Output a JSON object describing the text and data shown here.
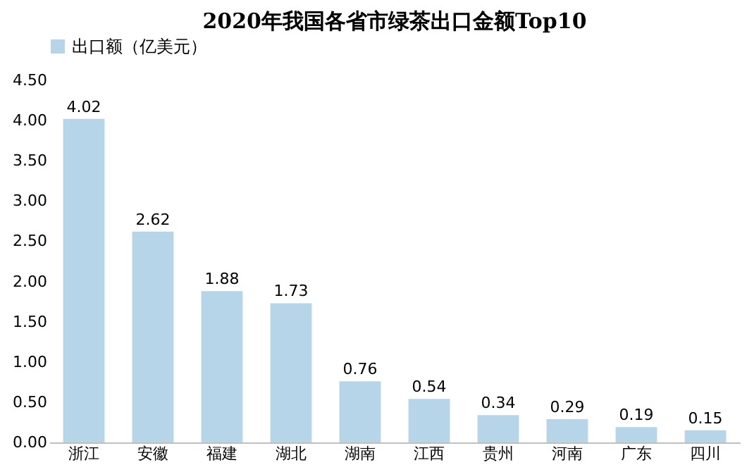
{
  "chart_data": {
    "type": "bar",
    "title": "2020年我国各省市绿茶出口金额Top10",
    "categories": [
      "浙江",
      "安徽",
      "福建",
      "湖北",
      "湖南",
      "江西",
      "贵州",
      "河南",
      "广东",
      "四川"
    ],
    "series": [
      {
        "name": "出口额（亿美元）",
        "color": "#b7d5e8",
        "values": [
          4.02,
          2.62,
          1.88,
          1.73,
          0.76,
          0.54,
          0.34,
          0.29,
          0.19,
          0.15
        ]
      }
    ],
    "ylim": [
      0,
      4.5
    ],
    "yticks": [
      {
        "value": 0,
        "label": "0.00"
      },
      {
        "value": 0.5,
        "label": "0.50"
      },
      {
        "value": 1,
        "label": "1.00"
      },
      {
        "value": 1.5,
        "label": "1.50"
      },
      {
        "value": 2,
        "label": "2.00"
      },
      {
        "value": 2.5,
        "label": "2.50"
      },
      {
        "value": 3,
        "label": "3.00"
      },
      {
        "value": 3.5,
        "label": "3.50"
      },
      {
        "value": 4,
        "label": "4.00"
      },
      {
        "value": 4.5,
        "label": "4.50"
      }
    ],
    "data_labels": true,
    "legend": "top",
    "grid": false
  }
}
